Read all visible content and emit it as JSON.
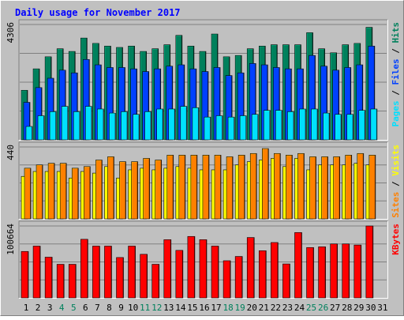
{
  "title": "Daily usage for November 2017",
  "colors": {
    "background": "#C0C0C0",
    "title": "#0000FF",
    "hits": "#00805C",
    "files": "#0040FF",
    "pages": "#00E0FF",
    "visits": "#FFFF00",
    "sites": "#FF8000",
    "kbytes": "#FF0000",
    "weekend_day": "#00805C",
    "weekday": "#000000"
  },
  "chart_data": [
    {
      "type": "bar",
      "panel": "hits-files-pages",
      "max_label": "4306",
      "ylim": [
        0,
        4306
      ],
      "legend": [
        "Pages",
        "Files",
        "Hits"
      ],
      "legend_separator": " / ",
      "categories": [
        "1",
        "2",
        "3",
        "4",
        "5",
        "6",
        "7",
        "8",
        "9",
        "10",
        "11",
        "12",
        "13",
        "14",
        "15",
        "16",
        "17",
        "18",
        "19",
        "20",
        "21",
        "22",
        "23",
        "24",
        "25",
        "26",
        "27",
        "28",
        "29",
        "30",
        "31"
      ],
      "weekend_categories": [
        "4",
        "5",
        "11",
        "12",
        "18",
        "19",
        "25",
        "26"
      ],
      "series": [
        {
          "name": "Hits",
          "values": [
            1850,
            2650,
            3100,
            3400,
            3300,
            3800,
            3600,
            3500,
            3450,
            3500,
            3300,
            3400,
            3550,
            3900,
            3500,
            3300,
            3950,
            3100,
            3150,
            3400,
            3500,
            3550,
            3550,
            3550,
            4000,
            3400,
            3250,
            3550,
            3600,
            4200,
            null
          ]
        },
        {
          "name": "Files",
          "values": [
            1400,
            1950,
            2300,
            2600,
            2500,
            3000,
            2800,
            2700,
            2700,
            2650,
            2550,
            2650,
            2750,
            2800,
            2650,
            2550,
            2700,
            2400,
            2500,
            2850,
            2800,
            2700,
            2650,
            2650,
            3150,
            2750,
            2600,
            2700,
            2800,
            3500,
            null
          ]
        },
        {
          "name": "Pages",
          "values": [
            500,
            900,
            1050,
            1250,
            1050,
            1250,
            1150,
            1000,
            1050,
            950,
            1050,
            1150,
            1150,
            1250,
            1200,
            850,
            900,
            850,
            900,
            950,
            1100,
            1100,
            1050,
            1150,
            1150,
            1000,
            950,
            950,
            1100,
            1150,
            null
          ]
        }
      ]
    },
    {
      "type": "bar",
      "panel": "visits-sites",
      "max_label": "440",
      "ylim": [
        0,
        440
      ],
      "legend": [
        "Sites",
        "Visits"
      ],
      "legend_separator": " / ",
      "categories": [
        "1",
        "2",
        "3",
        "4",
        "5",
        "6",
        "7",
        "8",
        "9",
        "10",
        "11",
        "12",
        "13",
        "14",
        "15",
        "16",
        "17",
        "18",
        "19",
        "20",
        "21",
        "22",
        "23",
        "24",
        "25",
        "26",
        "27",
        "28",
        "29",
        "30",
        "31"
      ],
      "weekend_categories": [
        "4",
        "5",
        "11",
        "12",
        "18",
        "19",
        "25",
        "26"
      ],
      "series": [
        {
          "name": "Visits",
          "values": [
            260,
            290,
            290,
            290,
            250,
            290,
            280,
            320,
            250,
            300,
            310,
            300,
            310,
            320,
            310,
            300,
            300,
            300,
            330,
            350,
            360,
            370,
            320,
            370,
            300,
            330,
            330,
            330,
            340,
            330,
            null
          ]
        },
        {
          "name": "Sites",
          "values": [
            310,
            330,
            340,
            340,
            310,
            320,
            360,
            380,
            350,
            350,
            370,
            360,
            390,
            390,
            390,
            390,
            390,
            380,
            390,
            400,
            430,
            400,
            390,
            400,
            380,
            380,
            380,
            390,
            400,
            390,
            null
          ]
        }
      ]
    },
    {
      "type": "bar",
      "panel": "kbytes",
      "max_label": "100664",
      "ylim": [
        0,
        100664
      ],
      "legend": [
        "KBytes"
      ],
      "legend_separator": " / ",
      "categories": [
        "1",
        "2",
        "3",
        "4",
        "5",
        "6",
        "7",
        "8",
        "9",
        "10",
        "11",
        "12",
        "13",
        "14",
        "15",
        "16",
        "17",
        "18",
        "19",
        "20",
        "21",
        "22",
        "23",
        "24",
        "25",
        "26",
        "27",
        "28",
        "29",
        "30",
        "31"
      ],
      "weekend_categories": [
        "4",
        "5",
        "11",
        "12",
        "18",
        "19",
        "25",
        "26"
      ],
      "series": [
        {
          "name": "KBytes",
          "values": [
            65000,
            72500,
            57000,
            47000,
            47000,
            82000,
            72500,
            72500,
            56500,
            72500,
            61000,
            47000,
            81500,
            66500,
            86000,
            81500,
            72500,
            52000,
            58000,
            84500,
            66000,
            77500,
            47500,
            91500,
            70500,
            71500,
            75500,
            75500,
            74000,
            100664,
            null
          ]
        }
      ]
    }
  ]
}
